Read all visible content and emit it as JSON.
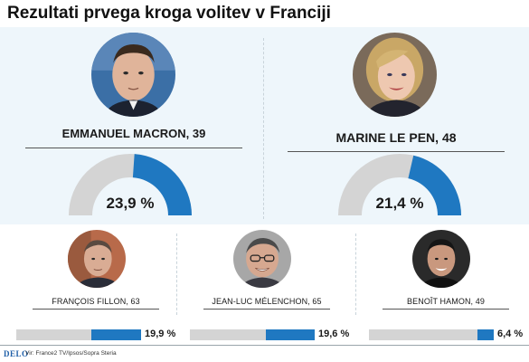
{
  "title": "Rezultati prvega kroga volitev v Franciji",
  "colors": {
    "accent": "#1f78c1",
    "track": "#d4d4d4",
    "panel": "#eef6fb"
  },
  "chart_data": {
    "type": "bar",
    "categories": [
      "EMMANUEL MACRON, 39",
      "MARINE LE PEN, 48",
      "FRANÇOIS FILLON, 63",
      "JEAN-LUC MÉLENCHON, 65",
      "BENOÎT HAMON, 49"
    ],
    "values": [
      23.9,
      21.4,
      19.9,
      19.6,
      6.4
    ],
    "value_labels": [
      "23,9 %",
      "21,4 %",
      "19,9 %",
      "19,6 %",
      "6,4 %"
    ],
    "unit": "%",
    "title": "Rezultati prvega kroga volitev v Franciji"
  },
  "main_candidates": [
    {
      "name": "EMMANUEL MACRON, 39",
      "pct_label": "23,9 %",
      "value": 23.9,
      "portrait": "portrait-macron"
    },
    {
      "name": "MARINE LE PEN, 48",
      "pct_label": "21,4 %",
      "value": 21.4,
      "portrait": "portrait-le-pen"
    }
  ],
  "other_candidates": [
    {
      "name": "FRANÇOIS FILLON, 63",
      "pct_label": "19,9 %",
      "value": 19.9,
      "portrait": "portrait-fillon"
    },
    {
      "name": "JEAN-LUC MÉLENCHON, 65",
      "pct_label": "19,6 %",
      "value": 19.6,
      "portrait": "portrait-melenchon"
    },
    {
      "name": "BENOÎT HAMON, 49",
      "pct_label": "6,4 %",
      "value": 6.4,
      "portrait": "portrait-hamon"
    }
  ],
  "footer": {
    "logo": "DELO",
    "source": "Vir: France2 TV/Ipsos/Sopra Steria"
  }
}
